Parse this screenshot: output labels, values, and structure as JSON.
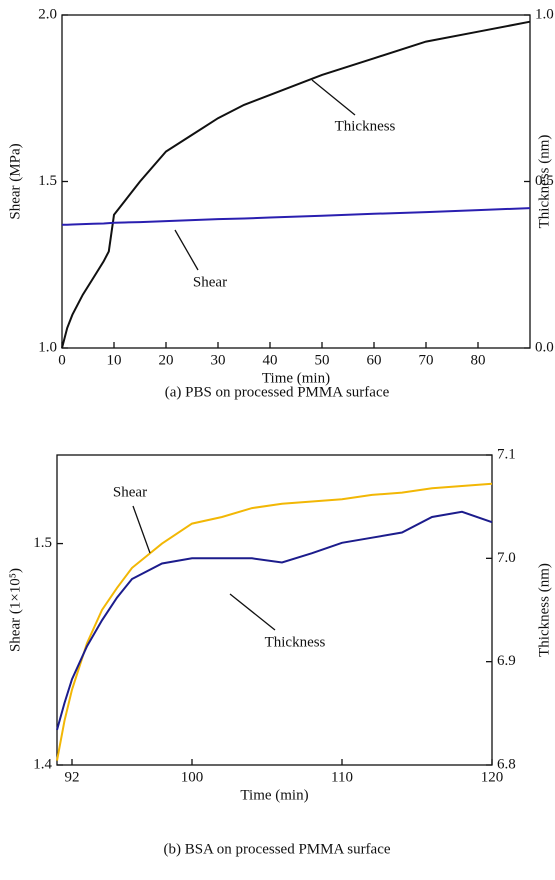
{
  "chart_data": [
    {
      "type": "line",
      "caption": "(a) PBS on processed PMMA surface",
      "x_label": "Time (min)",
      "y_label": "Shear (MPa)",
      "y2_label": "Thickness (nm)",
      "x": [
        0,
        1,
        2,
        4,
        6,
        8,
        9,
        10,
        12,
        15,
        20,
        25,
        30,
        35,
        40,
        50,
        60,
        70,
        80,
        90
      ],
      "xlim": [
        0,
        90
      ],
      "xticks": [
        0,
        10,
        20,
        30,
        40,
        50,
        60,
        70,
        80
      ],
      "ylim": [
        1.0,
        2.0
      ],
      "yticks": [
        {
          "value": 1.0,
          "label": "1.0"
        },
        1.5,
        {
          "value": 2.0,
          "label": "2.0"
        }
      ],
      "y2lim": [
        0,
        1
      ],
      "y2ticks": [
        {
          "value": 0,
          "label": "0.0"
        },
        0.5,
        {
          "value": 1,
          "label": "1.0"
        }
      ],
      "series": [
        {
          "name": "Thickness",
          "color": "#111111",
          "axis": "y2",
          "values": [
            0,
            0.06,
            0.1,
            0.16,
            0.21,
            0.26,
            0.29,
            0.4,
            0.44,
            0.5,
            0.59,
            0.64,
            0.69,
            0.73,
            0.76,
            0.82,
            0.87,
            0.92,
            0.95,
            0.98
          ]
        },
        {
          "name": "Shear",
          "color": "#2a1fb0",
          "values": [
            1.37,
            1.37,
            1.371,
            1.372,
            1.373,
            1.374,
            1.375,
            1.376,
            1.377,
            1.378,
            1.381,
            1.384,
            1.387,
            1.389,
            1.392,
            1.397,
            1.403,
            1.408,
            1.414,
            1.42
          ]
        }
      ],
      "annotations": [
        {
          "text": "Thickness"
        },
        {
          "text": "Shear"
        }
      ]
    },
    {
      "type": "line",
      "caption": "(b) BSA on processed PMMA surface",
      "x_label": "Time (min)",
      "y_label": "Shear (1×10⁵)",
      "y2_label": "Thickness (nm)",
      "x": [
        91,
        91.5,
        92,
        93,
        94,
        95,
        96,
        98,
        100,
        102,
        104,
        106,
        108,
        110,
        112,
        114,
        116,
        118,
        120
      ],
      "xlim": [
        91,
        120
      ],
      "xticks": [
        92,
        100,
        110,
        120
      ],
      "ylim": [
        1.4,
        1.54
      ],
      "yticks": [
        1.4,
        1.5
      ],
      "y2lim": [
        6.8,
        7.1
      ],
      "y2ticks": [
        6.8,
        6.9,
        {
          "value": 7.0,
          "label": "7.0"
        },
        7.1
      ],
      "series": [
        {
          "name": "Shear",
          "color": "#f2b705",
          "values": [
            1.402,
            1.42,
            1.434,
            1.455,
            1.47,
            1.48,
            1.489,
            1.5,
            1.509,
            1.512,
            1.516,
            1.518,
            1.519,
            1.52,
            1.522,
            1.523,
            1.525,
            1.526,
            1.527
          ]
        },
        {
          "name": "Thickness",
          "color": "#1c1c8c",
          "axis": "y2",
          "values": [
            6.834,
            6.86,
            6.883,
            6.915,
            6.94,
            6.962,
            6.98,
            6.995,
            7.0,
            7.0,
            7.0,
            6.996,
            7.005,
            7.015,
            7.02,
            7.025,
            7.04,
            7.045,
            7.035
          ]
        }
      ],
      "annotations": [
        {
          "text": "Shear"
        },
        {
          "text": "Thickness"
        }
      ]
    }
  ]
}
